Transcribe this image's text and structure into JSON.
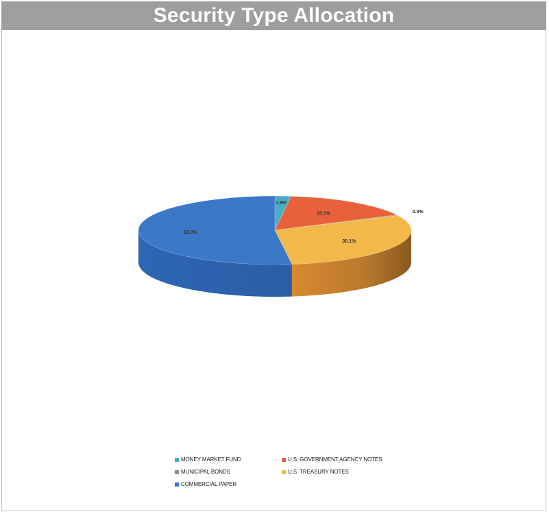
{
  "chart_data": {
    "type": "pie",
    "title": "Security Type Allocation",
    "slices": [
      {
        "label": "MONEY MARKET FUND",
        "value": 1.9,
        "data_label": "1.9%",
        "color": "#4bacc6"
      },
      {
        "label": "U.S. GOVERNMENT AGENCY NOTES",
        "value": 15.7,
        "data_label": "15.7%",
        "color": "#e8613b"
      },
      {
        "label": "MUNICIPAL BONDS",
        "value": 0.3,
        "data_label": "0.3%",
        "color": "#8c8c8c"
      },
      {
        "label": "U.S. TREASURY NOTES",
        "value": 30.1,
        "data_label": "30.1%",
        "color": "#f2b94a"
      },
      {
        "label": "COMMERCIAL PAPER",
        "value": 52.0,
        "data_label": "52.0%",
        "color": "#3b78c8"
      }
    ],
    "legend_position": "bottom",
    "three_d": true
  },
  "legend": {
    "items": [
      {
        "label": "MONEY MARKET FUND",
        "color": "#4bacc6"
      },
      {
        "label": "U.S. GOVERNMENT AGENCY NOTES",
        "color": "#e8613b"
      },
      {
        "label": "MUNICIPAL BONDS",
        "color": "#8c8c8c"
      },
      {
        "label": "U.S. TREASURY NOTES",
        "color": "#f2b94a"
      },
      {
        "label": "COMMERCIAL PAPER",
        "color": "#3b78c8"
      }
    ]
  }
}
